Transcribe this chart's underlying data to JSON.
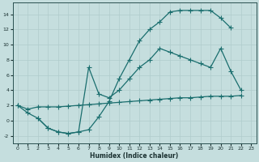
{
  "xlabel": "Humidex (Indice chaleur)",
  "background_color": "#c5dede",
  "grid_color": "#b0cccc",
  "line_color": "#1a6e6e",
  "xlim": [
    -0.5,
    23.5
  ],
  "ylim": [
    -3,
    15.5
  ],
  "xticks": [
    0,
    1,
    2,
    3,
    4,
    5,
    6,
    7,
    8,
    9,
    10,
    11,
    12,
    13,
    14,
    15,
    16,
    17,
    18,
    19,
    20,
    21,
    22,
    23
  ],
  "yticks": [
    -2,
    0,
    2,
    4,
    6,
    8,
    10,
    12,
    14
  ],
  "curve1_x": [
    0,
    1,
    2,
    3,
    4,
    5,
    6,
    7,
    8,
    9,
    10,
    11,
    12,
    13,
    14,
    15,
    16,
    17,
    18,
    19,
    20,
    21
  ],
  "curve1_y": [
    2.0,
    1.0,
    0.3,
    -1.0,
    -1.5,
    -1.7,
    -1.5,
    -1.2,
    0.5,
    2.5,
    5.5,
    8.0,
    10.5,
    12.0,
    13.0,
    14.3,
    14.5,
    14.5,
    14.5,
    14.5,
    13.5,
    12.2
  ],
  "curve2_x": [
    2,
    3,
    4,
    5,
    6,
    7,
    8,
    9,
    10,
    11,
    12,
    13,
    14,
    15,
    16,
    17,
    18,
    19,
    20,
    21,
    22
  ],
  "curve2_y": [
    0.3,
    -1.0,
    -1.5,
    -1.7,
    -1.5,
    7.0,
    3.5,
    3.0,
    4.0,
    5.5,
    7.0,
    8.0,
    9.5,
    9.0,
    8.5,
    8.0,
    7.5,
    7.0,
    9.5,
    6.5,
    4.0
  ],
  "curve3_x": [
    0,
    1,
    2,
    3,
    4,
    5,
    6,
    7,
    8,
    9,
    10,
    11,
    12,
    13,
    14,
    15,
    16,
    17,
    18,
    19,
    20,
    21,
    22
  ],
  "curve3_y": [
    2.0,
    1.5,
    1.8,
    1.8,
    1.8,
    1.9,
    2.0,
    2.1,
    2.2,
    2.3,
    2.4,
    2.5,
    2.6,
    2.7,
    2.8,
    2.9,
    3.0,
    3.0,
    3.1,
    3.2,
    3.2,
    3.2,
    3.3
  ]
}
